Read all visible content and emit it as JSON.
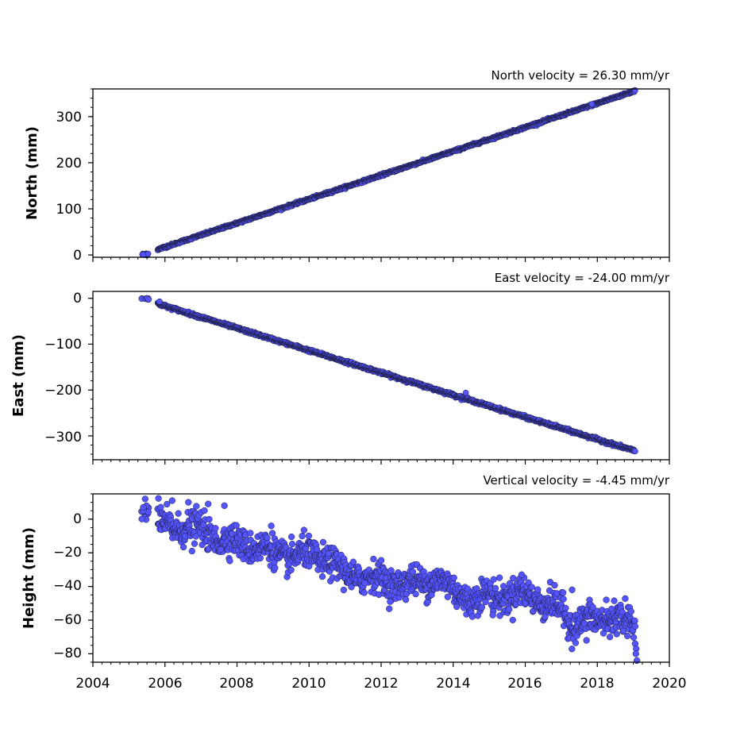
{
  "chart_data": [
    {
      "type": "scatter",
      "title": "North velocity = 26.30 mm/yr",
      "ylabel": "North (mm)",
      "xlim": [
        2004,
        2020
      ],
      "ylim": [
        -5,
        360
      ],
      "yticks": [
        0,
        100,
        200,
        300
      ],
      "ytick_labels": [
        "0",
        "100",
        "200",
        "300"
      ],
      "grid": false,
      "trend": {
        "start": [
          2005.8,
          12
        ],
        "end": [
          2019.05,
          356
        ]
      },
      "initial_cluster": {
        "x_range": [
          2005.35,
          2005.55
        ],
        "y_range": [
          -1,
          3
        ]
      },
      "jitter_mm": 1.2,
      "outliers": [
        [
          2017.85,
          327
        ]
      ]
    },
    {
      "type": "scatter",
      "title": "East velocity = -24.00 mm/yr",
      "ylabel": "East (mm)",
      "xlim": [
        2004,
        2020
      ],
      "ylim": [
        -352,
        15
      ],
      "yticks": [
        0,
        -100,
        -200,
        -300
      ],
      "ytick_labels": [
        "0",
        "−100",
        "−200",
        "−300"
      ],
      "grid": false,
      "trend": {
        "start": [
          2005.8,
          -12
        ],
        "end": [
          2019.05,
          -333
        ]
      },
      "initial_cluster": {
        "x_range": [
          2005.35,
          2005.55
        ],
        "y_range": [
          -3,
          1
        ]
      },
      "jitter_mm": 1.5,
      "outliers": [
        [
          2005.85,
          -7
        ],
        [
          2014.35,
          -206
        ]
      ]
    },
    {
      "type": "scatter",
      "title": "Vertical velocity = -4.45 mm/yr",
      "ylabel": "Height (mm)",
      "xlabel": "",
      "xlim": [
        2004,
        2020
      ],
      "ylim": [
        -85,
        15
      ],
      "yticks": [
        0,
        -20,
        -40,
        -60,
        -80
      ],
      "ytick_labels": [
        "0",
        "−20",
        "−40",
        "−60",
        "−80"
      ],
      "grid": false,
      "trend_points": [
        [
          2005.8,
          -3
        ],
        [
          2006.5,
          -5
        ],
        [
          2007.0,
          -6
        ],
        [
          2007.5,
          -12
        ],
        [
          2008.0,
          -14
        ],
        [
          2008.7,
          -17
        ],
        [
          2009.0,
          -20
        ],
        [
          2009.5,
          -22
        ],
        [
          2010.0,
          -21
        ],
        [
          2010.5,
          -24
        ],
        [
          2011.0,
          -33
        ],
        [
          2011.5,
          -34
        ],
        [
          2012.0,
          -36
        ],
        [
          2012.5,
          -38
        ],
        [
          2013.0,
          -38
        ],
        [
          2013.5,
          -35
        ],
        [
          2014.0,
          -42
        ],
        [
          2014.5,
          -48
        ],
        [
          2015.0,
          -45
        ],
        [
          2015.5,
          -46
        ],
        [
          2016.0,
          -44
        ],
        [
          2016.5,
          -49
        ],
        [
          2017.0,
          -54
        ],
        [
          2017.3,
          -63
        ],
        [
          2017.7,
          -59
        ],
        [
          2018.0,
          -62
        ],
        [
          2018.5,
          -56
        ],
        [
          2019.05,
          -66
        ]
      ],
      "initial_cluster": {
        "x_range": [
          2005.35,
          2005.55
        ],
        "y_range": [
          -3,
          9
        ]
      },
      "jitter_mm": 4.5,
      "outliers": [
        [
          2005.45,
          12
        ],
        [
          2005.4,
          7
        ],
        [
          2006.2,
          11
        ],
        [
          2006.65,
          10
        ],
        [
          2007.2,
          9
        ],
        [
          2007.65,
          8
        ],
        [
          2007.55,
          -18
        ],
        [
          2006.75,
          -19
        ],
        [
          2008.95,
          -4
        ],
        [
          2010.0,
          -28
        ],
        [
          2011.55,
          -38
        ],
        [
          2012.25,
          -49
        ],
        [
          2013.4,
          -45
        ],
        [
          2014.1,
          -52
        ],
        [
          2015.1,
          -57
        ],
        [
          2015.9,
          -33
        ],
        [
          2016.55,
          -58
        ],
        [
          2017.3,
          -42
        ],
        [
          2017.7,
          -72
        ],
        [
          2018.35,
          -70
        ],
        [
          2018.25,
          -48
        ],
        [
          2019.05,
          -74
        ],
        [
          2019.08,
          -77
        ],
        [
          2019.07,
          -80
        ],
        [
          2019.1,
          -84
        ]
      ]
    }
  ],
  "shared_x_axis": {
    "ticks": [
      2004,
      2006,
      2008,
      2010,
      2012,
      2014,
      2016,
      2018,
      2020
    ],
    "tick_labels": [
      "2004",
      "2006",
      "2008",
      "2010",
      "2012",
      "2014",
      "2016",
      "2018",
      "2020"
    ],
    "minor_tick_step_years": 0.25
  },
  "colors": {
    "marker_fill": "#5555ff",
    "marker_edge": "#1a1a3a",
    "axes": "#000000"
  }
}
